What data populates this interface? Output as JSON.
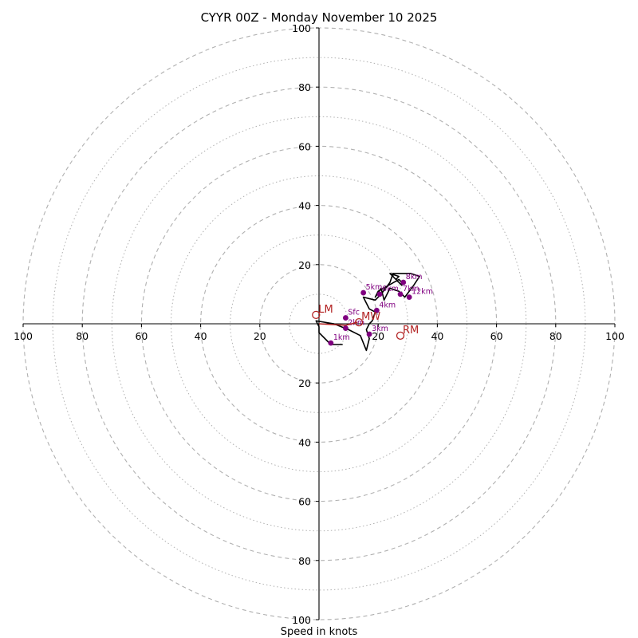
{
  "chart_data": {
    "type": "hodograph",
    "title": "CYYR 00Z - Monday November 10 2025",
    "xlabel": "Speed in knots",
    "rlim": [
      0,
      100
    ],
    "ring_major": [
      20,
      40,
      60,
      80,
      100
    ],
    "ring_minor": [
      10,
      30,
      50,
      70,
      90
    ],
    "tick_labels": {
      "left": [
        "100",
        "80",
        "60",
        "40",
        "20"
      ],
      "right": [
        "20",
        "40",
        "60",
        "80",
        "100"
      ],
      "top": [
        "100",
        "80",
        "60",
        "40",
        "20"
      ],
      "bottom": [
        "20",
        "40",
        "60",
        "80",
        "100"
      ]
    },
    "tick_values": [
      100,
      80,
      60,
      40,
      20
    ],
    "hodograph_line": [
      [
        8,
        -7
      ],
      [
        4,
        -7
      ],
      [
        0,
        -3
      ],
      [
        0,
        -1
      ],
      [
        -1,
        1
      ],
      [
        5,
        0
      ],
      [
        10,
        -2
      ],
      [
        14,
        -4
      ],
      [
        16,
        -9
      ],
      [
        17,
        -5
      ],
      [
        16,
        -2
      ],
      [
        17,
        0
      ],
      [
        18,
        1
      ],
      [
        19,
        4
      ],
      [
        17,
        5
      ],
      [
        15,
        9
      ],
      [
        19,
        8
      ],
      [
        21,
        10
      ],
      [
        24,
        14
      ],
      [
        25,
        17
      ],
      [
        31,
        17
      ],
      [
        34,
        16
      ],
      [
        32,
        13
      ],
      [
        29,
        9
      ],
      [
        27,
        11
      ],
      [
        24,
        12
      ],
      [
        22,
        8
      ],
      [
        21,
        12
      ],
      [
        19,
        9
      ],
      [
        20,
        11
      ],
      [
        27,
        15
      ],
      [
        28,
        14
      ],
      [
        28,
        13
      ],
      [
        24,
        17
      ],
      [
        27,
        16
      ],
      [
        26,
        15
      ],
      [
        24,
        17
      ]
    ],
    "height_markers": [
      {
        "label": "Sfc",
        "u": 9,
        "v": 2
      },
      {
        "label": "1km",
        "u": 4,
        "v": -6.5
      },
      {
        "label": "2km",
        "u": 9,
        "v": -1.5
      },
      {
        "label": "3km",
        "u": 17,
        "v": -3.5
      },
      {
        "label": "4km",
        "u": 19.5,
        "v": 4.5
      },
      {
        "label": "5km",
        "u": 15,
        "v": 10.5
      },
      {
        "label": "6km",
        "u": 20.5,
        "v": 10
      },
      {
        "label": "7km",
        "u": 27.5,
        "v": 10
      },
      {
        "label": "8km",
        "u": 28.5,
        "v": 14
      },
      {
        "label": "12km",
        "u": 30.5,
        "v": 9
      }
    ],
    "storm_motion_line": [
      [
        0,
        0
      ],
      [
        9,
        -0.5
      ],
      [
        13,
        0.5
      ]
    ],
    "storm_motion": [
      {
        "label": "LM",
        "u": -1,
        "v": 3
      },
      {
        "label": "RM",
        "u": 27.5,
        "v": -4
      },
      {
        "label": "MW",
        "u": 13.5,
        "v": 0.5
      }
    ],
    "colors": {
      "ring": "#b0b0b0",
      "axis": "#000000",
      "trace": "#000000",
      "markers": "#800080",
      "storm_motion": "#b22222"
    }
  }
}
